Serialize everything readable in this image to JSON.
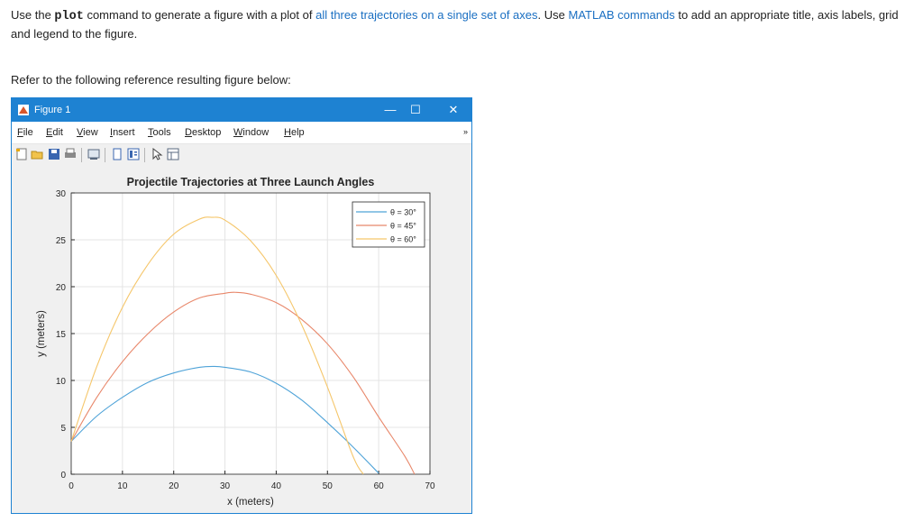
{
  "instructions": {
    "part1": "Use the ",
    "code": "plot",
    "part2": " command to generate a figure with a plot of ",
    "link1": "all three trajectories on a single set of axes",
    "part3": ".  Use ",
    "link2": "MATLAB commands",
    "part4": " to add an appropriate title, axis labels, grid and legend to the figure."
  },
  "refer_text": "Refer to the following reference resulting figure below:",
  "window": {
    "title": "Figure 1",
    "minimize": "—",
    "maximize": "☐",
    "close": "✕"
  },
  "menu": [
    {
      "label": "File",
      "key": "F",
      "rest": "ile"
    },
    {
      "label": "Edit",
      "key": "E",
      "rest": "dit"
    },
    {
      "label": "View",
      "key": "V",
      "rest": "iew"
    },
    {
      "label": "Insert",
      "key": "I",
      "rest": "nsert"
    },
    {
      "label": "Tools",
      "key": "T",
      "rest": "ools"
    },
    {
      "label": "Desktop",
      "key": "D",
      "rest": "esktop"
    },
    {
      "label": "Window",
      "key": "W",
      "rest": "indow"
    },
    {
      "label": "Help",
      "key": "H",
      "rest": "elp"
    }
  ],
  "toolbar_icons": [
    "new-figure-icon",
    "open-file-icon",
    "save-icon",
    "print-icon",
    "link-plot-icon",
    "hide-plot-tools-icon",
    "show-plot-tools-icon",
    "edit-plot-icon",
    "property-inspector-icon"
  ],
  "chart_data": {
    "type": "line",
    "title": "Projectile Trajectories at Three Launch Angles",
    "xlabel": "x (meters)",
    "ylabel": "y (meters)",
    "xlim": [
      0,
      70
    ],
    "ylim": [
      0,
      30
    ],
    "xticks": [
      0,
      10,
      20,
      30,
      40,
      50,
      60,
      70
    ],
    "yticks": [
      0,
      5,
      10,
      15,
      20,
      25,
      30
    ],
    "grid": true,
    "legend_position": "top-right",
    "series": [
      {
        "name": "θ = 30°",
        "color": "#4fa3d8",
        "x": [
          0,
          5,
          10,
          15,
          20,
          25,
          28,
          30,
          35,
          40,
          45,
          50,
          55,
          60
        ],
        "y": [
          3.5,
          6.2,
          8.2,
          9.8,
          10.8,
          11.4,
          11.5,
          11.4,
          10.9,
          9.7,
          7.9,
          5.5,
          2.9,
          0.1
        ]
      },
      {
        "name": "θ = 45°",
        "color": "#e8876a",
        "x": [
          0,
          5,
          10,
          15,
          20,
          25,
          30,
          32,
          35,
          40,
          45,
          50,
          55,
          60,
          65,
          67
        ],
        "y": [
          3.5,
          8.2,
          12.0,
          15.0,
          17.3,
          18.8,
          19.3,
          19.4,
          19.2,
          18.3,
          16.5,
          13.9,
          10.4,
          6.1,
          2.0,
          0
        ]
      },
      {
        "name": "θ = 60°",
        "color": "#f5c66a",
        "x": [
          0,
          5,
          10,
          15,
          20,
          25,
          27.5,
          30,
          35,
          40,
          45,
          50,
          55,
          57
        ],
        "y": [
          3.5,
          11.5,
          17.8,
          22.4,
          25.6,
          27.2,
          27.4,
          27.1,
          24.9,
          21.2,
          15.9,
          9.3,
          1.9,
          0
        ]
      }
    ]
  }
}
